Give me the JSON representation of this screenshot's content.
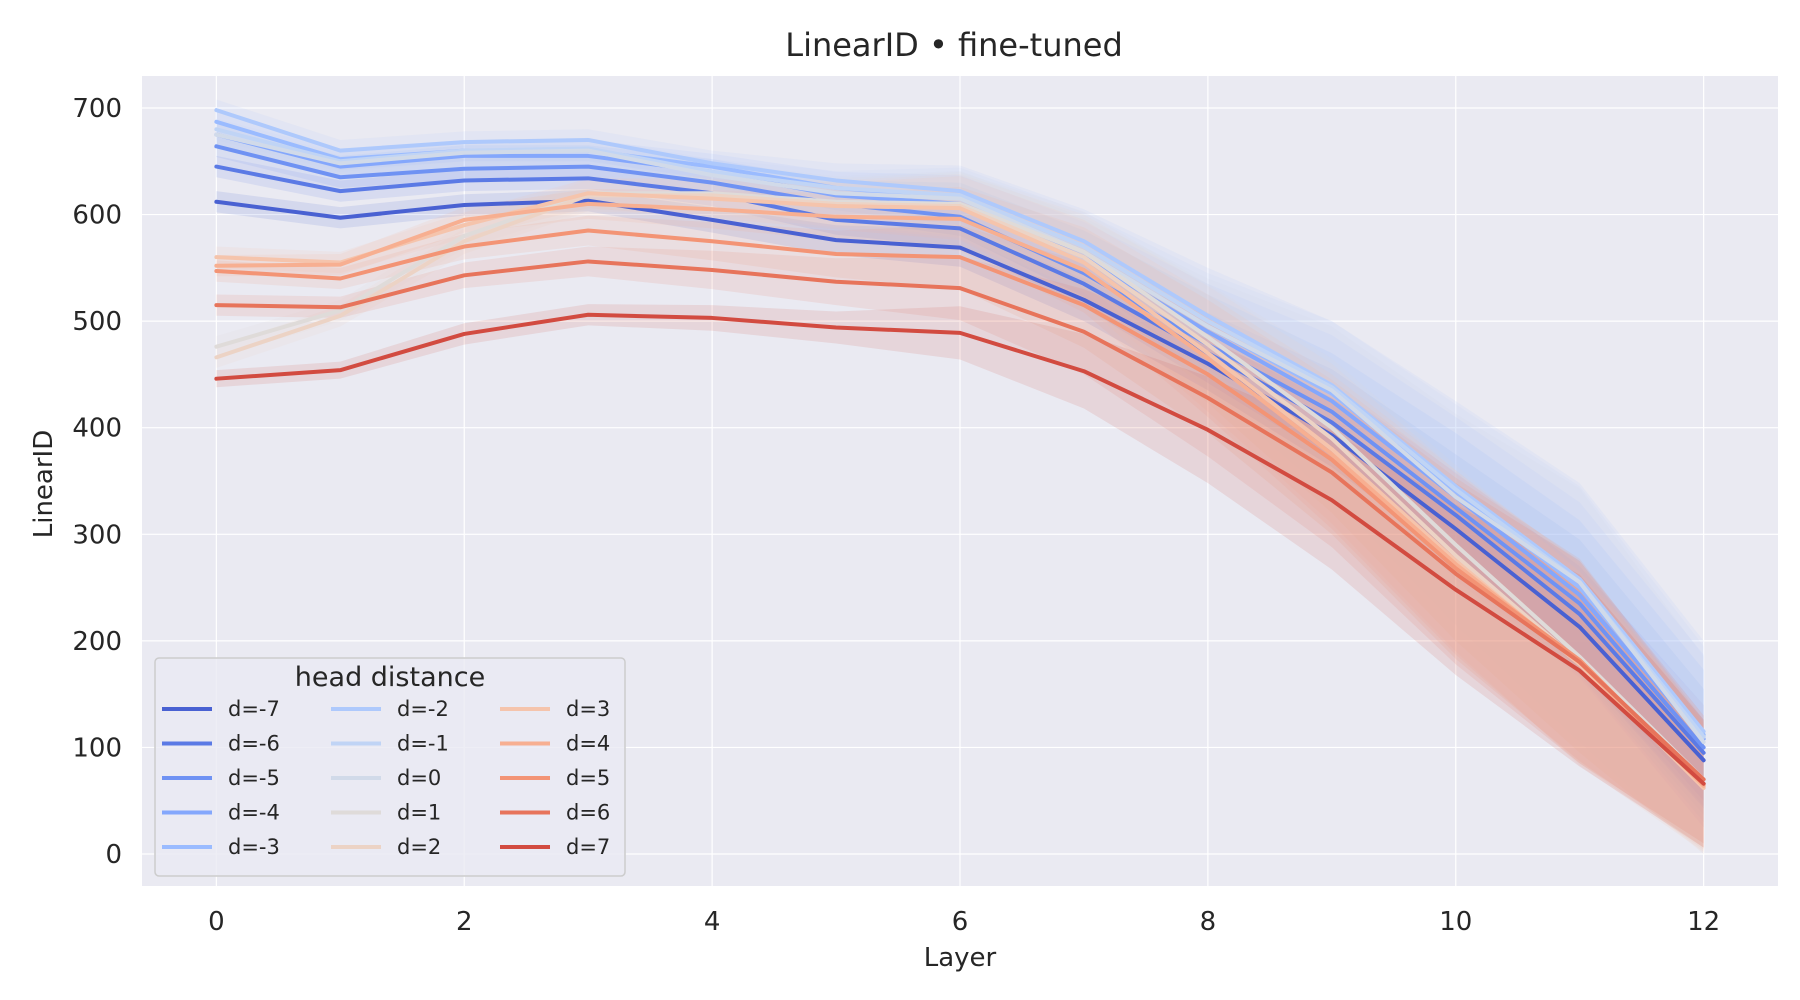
{
  "chart_data": {
    "type": "line",
    "title": "LinearID • fine-tuned",
    "xlabel": "Layer",
    "ylabel": "LinearID",
    "xlim": [
      -0.6,
      12.6
    ],
    "ylim": [
      -30,
      730
    ],
    "xticks": [
      0,
      2,
      4,
      6,
      8,
      10,
      12
    ],
    "yticks": [
      0,
      100,
      200,
      300,
      400,
      500,
      600,
      700
    ],
    "grid": true,
    "legend": {
      "title": "head distance",
      "placement": "lower-left",
      "columns": 3
    },
    "x": [
      0,
      1,
      2,
      3,
      4,
      5,
      6,
      7,
      8,
      9,
      10,
      11,
      12
    ],
    "series": [
      {
        "name": "d=-7",
        "color": "#4961d2",
        "values": [
          612,
          597,
          609,
          613,
          595,
          576,
          569,
          520,
          460,
          393,
          305,
          213,
          88
        ],
        "band": [
          10,
          10,
          10,
          10,
          12,
          14,
          18,
          20,
          25,
          30,
          30,
          30,
          25
        ]
      },
      {
        "name": "d=-6",
        "color": "#5b7ae5",
        "values": [
          645,
          622,
          632,
          634,
          620,
          595,
          587,
          535,
          470,
          405,
          318,
          225,
          95
        ],
        "band": [
          10,
          10,
          10,
          10,
          12,
          14,
          18,
          22,
          28,
          35,
          40,
          45,
          45
        ]
      },
      {
        "name": "d=-5",
        "color": "#6f92f3",
        "values": [
          664,
          635,
          643,
          645,
          630,
          610,
          598,
          545,
          478,
          415,
          325,
          235,
          100
        ],
        "band": [
          10,
          10,
          10,
          10,
          12,
          14,
          18,
          22,
          30,
          40,
          50,
          60,
          55
        ]
      },
      {
        "name": "d=-4",
        "color": "#84a7fc",
        "values": [
          675,
          645,
          655,
          655,
          640,
          618,
          610,
          560,
          490,
          425,
          335,
          243,
          108
        ],
        "band": [
          10,
          10,
          10,
          10,
          12,
          14,
          20,
          25,
          35,
          45,
          60,
          70,
          65
        ]
      },
      {
        "name": "d=-3",
        "color": "#9abbff",
        "values": [
          687,
          652,
          660,
          660,
          645,
          625,
          615,
          565,
          495,
          432,
          340,
          250,
          112
        ],
        "band": [
          10,
          10,
          10,
          10,
          12,
          15,
          22,
          28,
          40,
          55,
          70,
          80,
          75
        ]
      },
      {
        "name": "d=-2",
        "color": "#aec9fc",
        "values": [
          698,
          660,
          668,
          670,
          648,
          632,
          622,
          575,
          505,
          440,
          345,
          258,
          115
        ],
        "band": [
          10,
          10,
          10,
          10,
          12,
          16,
          24,
          30,
          45,
          60,
          80,
          90,
          85
        ]
      },
      {
        "name": "d=-1",
        "color": "#c0d4f5",
        "values": [
          680,
          650,
          660,
          662,
          640,
          625,
          618,
          570,
          500,
          438,
          342,
          255,
          110
        ],
        "band": [
          10,
          10,
          10,
          10,
          12,
          16,
          26,
          32,
          45,
          62,
          80,
          90,
          85
        ]
      },
      {
        "name": "d=0",
        "color": "#d1dae9",
        "values": [
          675,
          648,
          658,
          660,
          637,
          620,
          615,
          565,
          495,
          435,
          335,
          255,
          105
        ],
        "band": [
          10,
          10,
          10,
          10,
          12,
          16,
          26,
          32,
          45,
          60,
          78,
          88,
          80
        ]
      },
      {
        "name": "d=1",
        "color": "#dfdbd9",
        "values": [
          476,
          510,
          580,
          620,
          620,
          612,
          610,
          565,
          485,
          400,
          290,
          185,
          70
        ],
        "band": [
          10,
          10,
          12,
          15,
          18,
          22,
          30,
          38,
          50,
          65,
          75,
          80,
          70
        ]
      },
      {
        "name": "d=2",
        "color": "#ecd3c5",
        "values": [
          466,
          505,
          575,
          618,
          618,
          610,
          608,
          560,
          478,
          390,
          280,
          180,
          65
        ],
        "band": [
          10,
          10,
          12,
          15,
          18,
          22,
          30,
          40,
          55,
          70,
          80,
          85,
          65
        ]
      },
      {
        "name": "d=3",
        "color": "#f5c4ac",
        "values": [
          560,
          555,
          590,
          620,
          615,
          608,
          606,
          555,
          470,
          380,
          275,
          178,
          62
        ],
        "band": [
          10,
          10,
          12,
          14,
          18,
          22,
          30,
          40,
          55,
          70,
          85,
          95,
          60
        ]
      },
      {
        "name": "d=4",
        "color": "#f7af91",
        "values": [
          552,
          553,
          595,
          610,
          605,
          598,
          596,
          548,
          465,
          375,
          272,
          180,
          64
        ],
        "band": [
          10,
          10,
          12,
          14,
          18,
          22,
          30,
          40,
          55,
          70,
          85,
          95,
          60
        ]
      },
      {
        "name": "d=5",
        "color": "#f39475",
        "values": [
          547,
          540,
          570,
          585,
          575,
          563,
          560,
          515,
          450,
          370,
          268,
          182,
          66
        ],
        "band": [
          10,
          10,
          12,
          14,
          18,
          22,
          30,
          40,
          55,
          70,
          85,
          95,
          60
        ]
      },
      {
        "name": "d=6",
        "color": "#e7745b",
        "values": [
          515,
          513,
          543,
          556,
          548,
          537,
          531,
          490,
          428,
          358,
          263,
          180,
          70
        ],
        "band": [
          10,
          10,
          12,
          14,
          18,
          22,
          30,
          40,
          55,
          70,
          85,
          95,
          60
        ]
      },
      {
        "name": "d=7",
        "color": "#d24b40",
        "values": [
          446,
          454,
          488,
          506,
          503,
          494,
          489,
          453,
          398,
          332,
          248,
          172,
          66
        ],
        "band": [
          8,
          8,
          10,
          10,
          12,
          15,
          25,
          35,
          50,
          65,
          80,
          90,
          60
        ]
      }
    ]
  }
}
